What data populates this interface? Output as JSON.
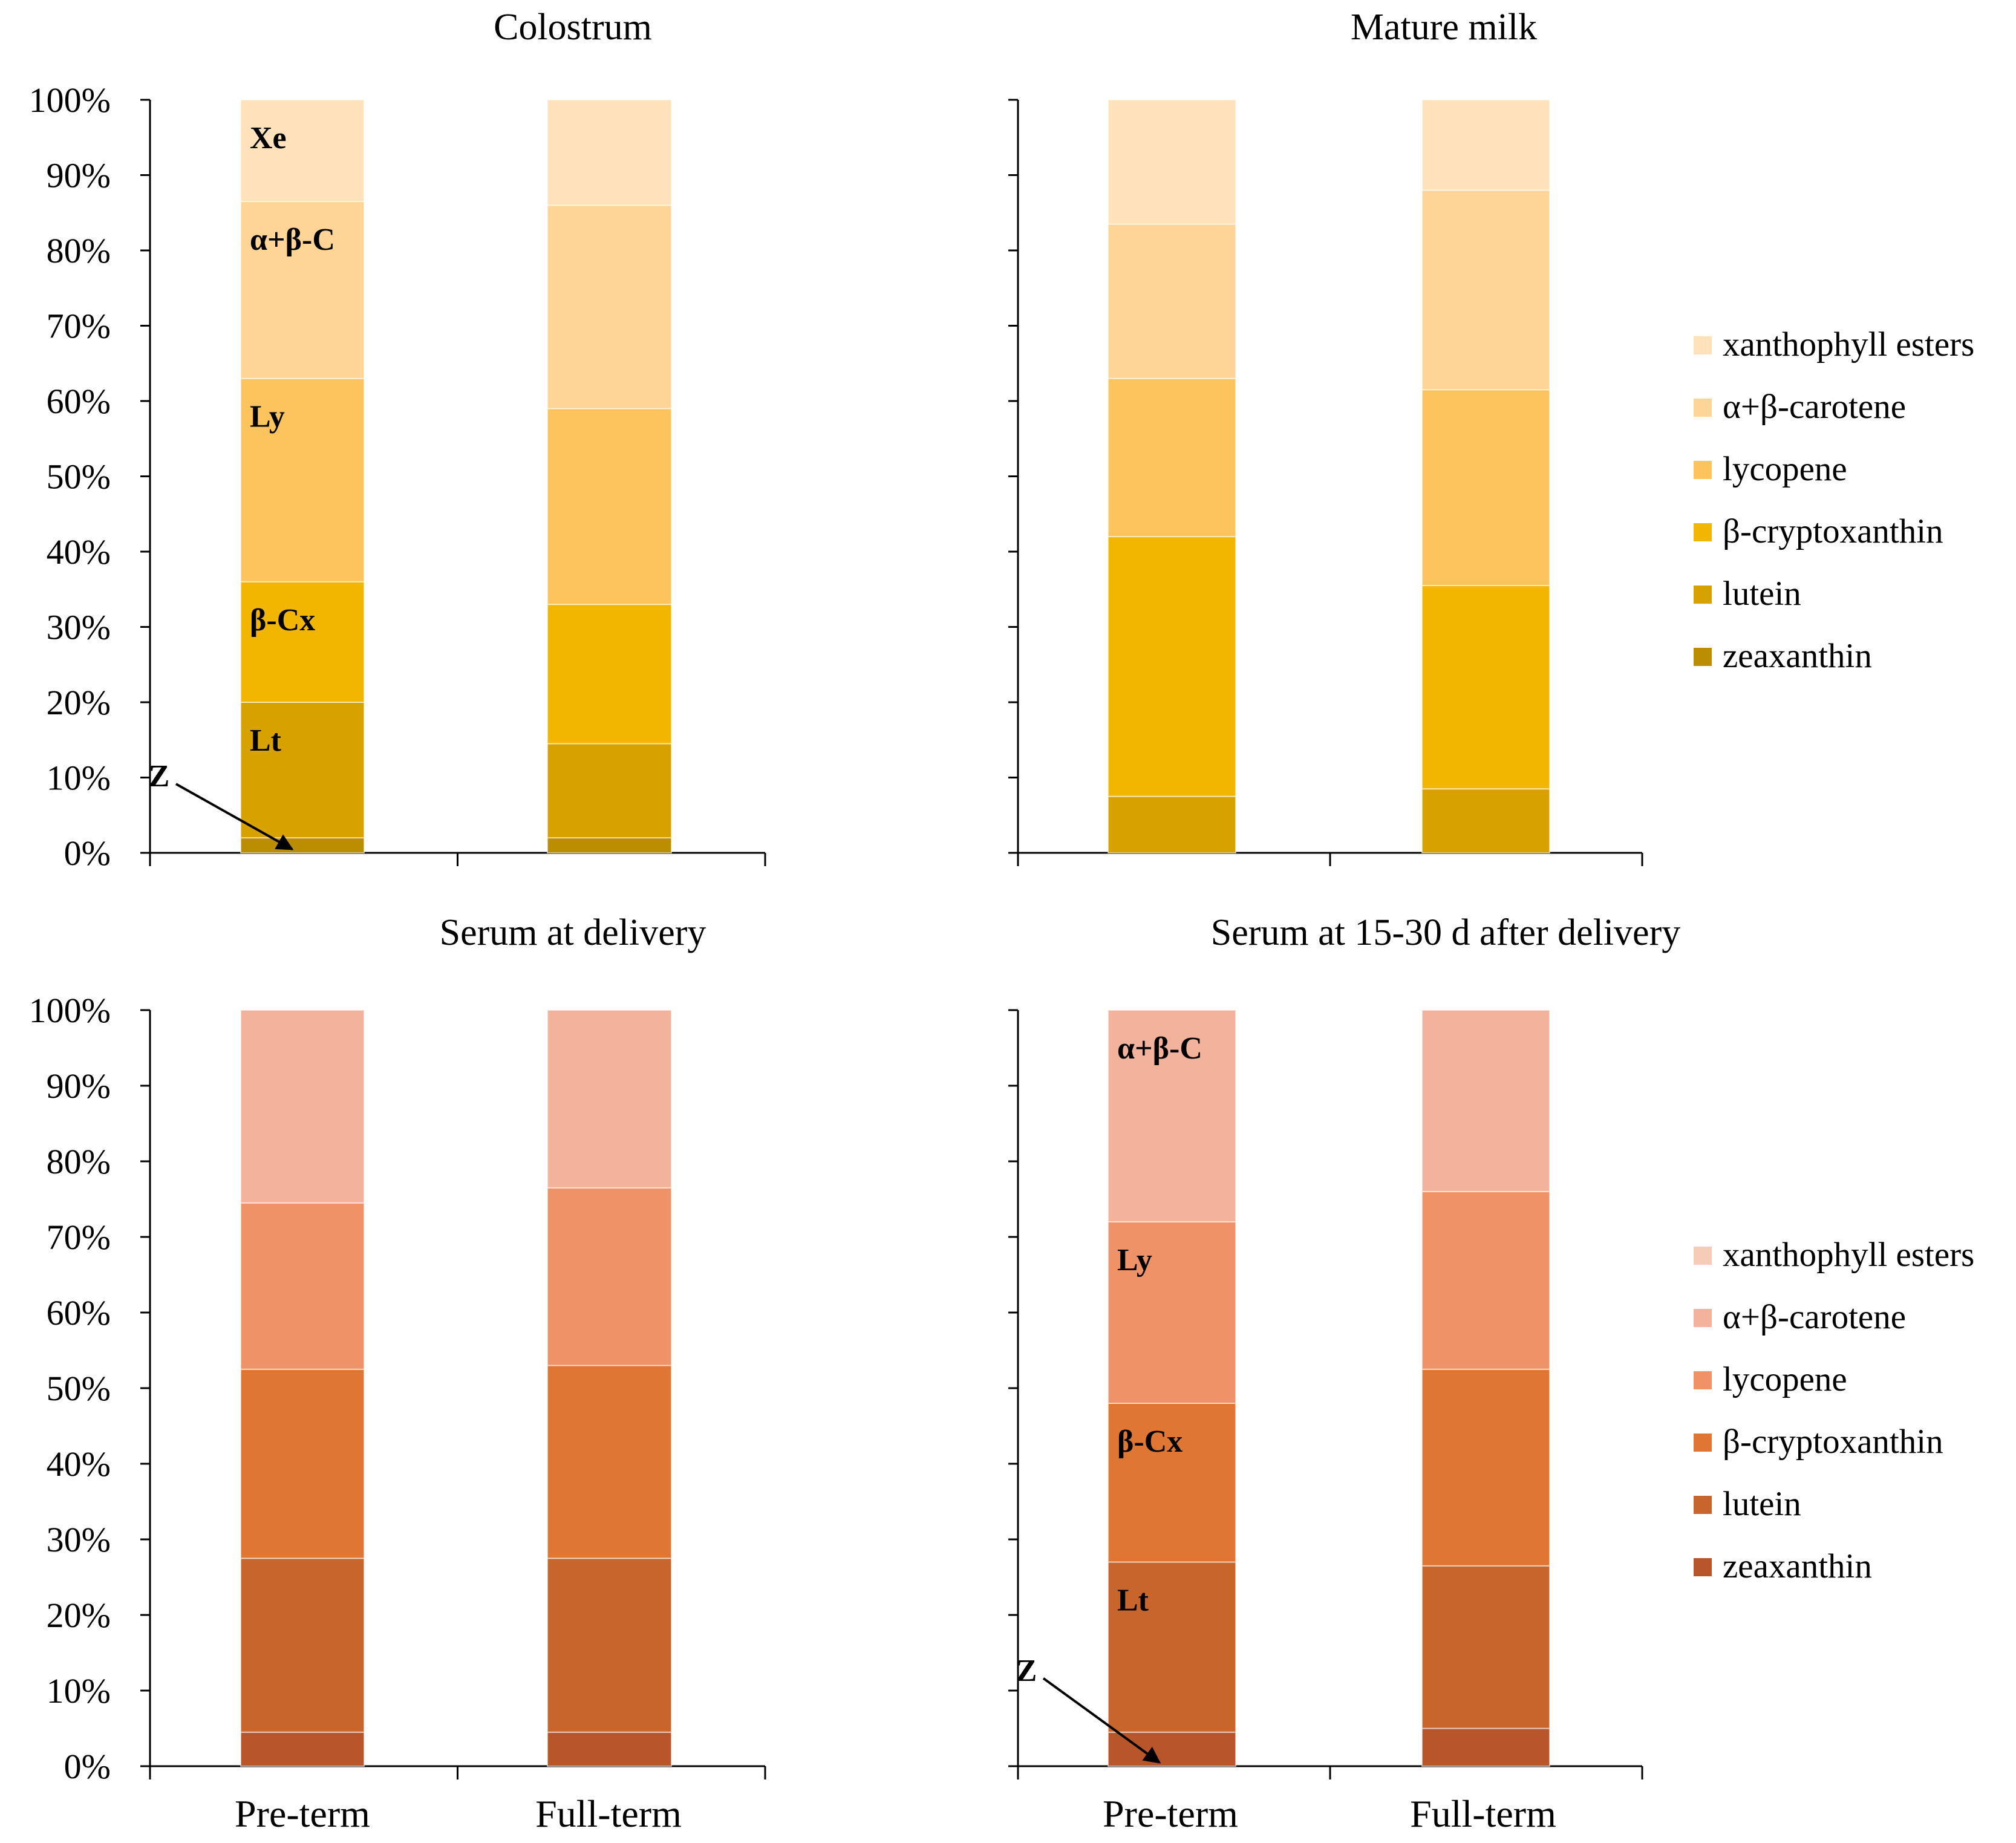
{
  "legend_items": [
    "xanthophyll esters",
    "α+β-carotene",
    "lycopene",
    "β-cryptoxanthin",
    "lutein",
    "zeaxanthin"
  ],
  "stack_order_bottom_up": [
    "zeaxanthin",
    "lutein",
    "β-cryptoxanthin",
    "lycopene",
    "α+β-carotene",
    "xanthophyll esters"
  ],
  "colors": {
    "milk": {
      "zeaxanthin": "#bb8d00",
      "lutein": "#d7a100",
      "β-cryptoxanthin": "#f2b600",
      "lycopene": "#fdc45d",
      "α+β-carotene": "#ffd597",
      "xanthophyll esters": "#ffe2bc"
    },
    "serum": {
      "zeaxanthin": "#b8552a",
      "lutein": "#c8652c",
      "β-cryptoxanthin": "#e07633",
      "lycopene": "#ef9268",
      "α+β-carotene": "#f2b29b",
      "xanthophyll esters": "#f6cbb8"
    }
  },
  "chart_data": [
    {
      "type": "bar",
      "stacked": "percent",
      "title": "Colostrum",
      "palette": "milk",
      "categories": [
        "Pre-term",
        "Full-term"
      ],
      "ylim": [
        0,
        100
      ],
      "yticks": [
        "0%",
        "10%",
        "20%",
        "30%",
        "40%",
        "50%",
        "60%",
        "70%",
        "80%",
        "90%",
        "100%"
      ],
      "series": [
        {
          "name": "zeaxanthin",
          "values": [
            2,
            2
          ]
        },
        {
          "name": "lutein",
          "values": [
            18,
            12.5
          ]
        },
        {
          "name": "β-cryptoxanthin",
          "values": [
            16,
            18.5
          ]
        },
        {
          "name": "lycopene",
          "values": [
            27,
            26
          ]
        },
        {
          "name": "α+β-carotene",
          "values": [
            23.5,
            27
          ]
        },
        {
          "name": "xanthophyll esters",
          "values": [
            13.5,
            14
          ]
        }
      ],
      "annotations": [
        {
          "text": "Xe",
          "series": "xanthophyll esters",
          "bar": 0
        },
        {
          "text": "α+β-C",
          "series": "α+β-carotene",
          "bar": 0
        },
        {
          "text": "Ly",
          "series": "lycopene",
          "bar": 0
        },
        {
          "text": "β-Cx",
          "series": "β-cryptoxanthin",
          "bar": 0
        },
        {
          "text": "Lt",
          "series": "lutein",
          "bar": 0
        },
        {
          "text": "Z",
          "series": "zeaxanthin",
          "bar": 0,
          "arrow": true
        }
      ]
    },
    {
      "type": "bar",
      "stacked": "percent",
      "title": "Mature milk",
      "palette": "milk",
      "categories": [
        "Pre-term",
        "Full-term"
      ],
      "ylim": [
        0,
        100
      ],
      "series": [
        {
          "name": "zeaxanthin",
          "values": [
            0,
            0
          ]
        },
        {
          "name": "lutein",
          "values": [
            7.5,
            8.5
          ]
        },
        {
          "name": "β-cryptoxanthin",
          "values": [
            34.5,
            27
          ]
        },
        {
          "name": "lycopene",
          "values": [
            21,
            26
          ]
        },
        {
          "name": "α+β-carotene",
          "values": [
            20.5,
            26.5
          ]
        },
        {
          "name": "xanthophyll esters",
          "values": [
            16.5,
            12
          ]
        }
      ],
      "annotations": []
    },
    {
      "type": "bar",
      "stacked": "percent",
      "title": "Serum at delivery",
      "palette": "serum",
      "categories": [
        "Pre-term",
        "Full-term"
      ],
      "ylim": [
        0,
        100
      ],
      "yticks": [
        "0%",
        "10%",
        "20%",
        "30%",
        "40%",
        "50%",
        "60%",
        "70%",
        "80%",
        "90%",
        "100%"
      ],
      "series": [
        {
          "name": "zeaxanthin",
          "values": [
            4.5,
            4.5
          ]
        },
        {
          "name": "lutein",
          "values": [
            23,
            23
          ]
        },
        {
          "name": "β-cryptoxanthin",
          "values": [
            25,
            25.5
          ]
        },
        {
          "name": "lycopene",
          "values": [
            22,
            23.5
          ]
        },
        {
          "name": "α+β-carotene",
          "values": [
            25.5,
            23.5
          ]
        },
        {
          "name": "xanthophyll esters",
          "values": [
            0,
            0
          ]
        }
      ],
      "annotations": []
    },
    {
      "type": "bar",
      "stacked": "percent",
      "title": "Serum at 15-30 d after delivery",
      "palette": "serum",
      "categories": [
        "Pre-term",
        "Full-term"
      ],
      "ylim": [
        0,
        100
      ],
      "series": [
        {
          "name": "zeaxanthin",
          "values": [
            4.5,
            5
          ]
        },
        {
          "name": "lutein",
          "values": [
            22.5,
            21.5
          ]
        },
        {
          "name": "β-cryptoxanthin",
          "values": [
            21,
            26
          ]
        },
        {
          "name": "lycopene",
          "values": [
            24,
            23.5
          ]
        },
        {
          "name": "α+β-carotene",
          "values": [
            28,
            24
          ]
        },
        {
          "name": "xanthophyll esters",
          "values": [
            0,
            0
          ]
        }
      ],
      "annotations": [
        {
          "text": "α+β-C",
          "series": "α+β-carotene",
          "bar": 0
        },
        {
          "text": "Ly",
          "series": "lycopene",
          "bar": 0
        },
        {
          "text": "β-Cx",
          "series": "β-cryptoxanthin",
          "bar": 0
        },
        {
          "text": "Lt",
          "series": "lutein",
          "bar": 0
        },
        {
          "text": "Z",
          "series": "zeaxanthin",
          "bar": 0,
          "arrow": true
        }
      ]
    }
  ]
}
